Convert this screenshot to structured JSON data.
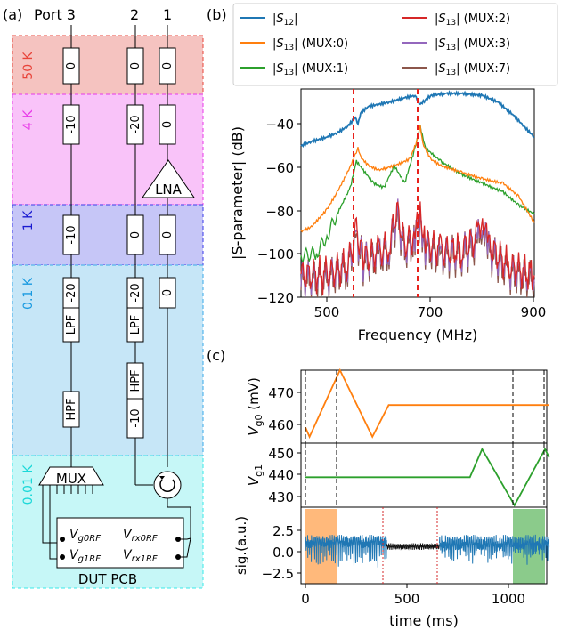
{
  "panel_a": {
    "label": "(a)",
    "port_labels": [
      "Port 3",
      "2",
      "1"
    ],
    "stages": [
      {
        "name": "50 K",
        "color": "#e8443a",
        "fill": "#f5c3c0",
        "text_color": "#e8443a"
      },
      {
        "name": "4 K",
        "color": "#e83ae8",
        "fill": "#f9c3f9",
        "text_color": "#e83ae8"
      },
      {
        "name": "1 K",
        "color": "#3a3ae8",
        "fill": "#c6c6f7",
        "text_color": "#1a1ad0"
      },
      {
        "name": "0.1 K",
        "color": "#3aaae8",
        "fill": "#c6e6f7",
        "text_color": "#1a9ae0"
      },
      {
        "name": "0.01 K",
        "color": "#3ae8e8",
        "fill": "#c6f7f7",
        "text_color": "#1ad8d8"
      }
    ],
    "attenuators": {
      "stage50": [
        "0",
        "0",
        "0"
      ],
      "stage4": [
        "-10",
        "-20",
        "0"
      ],
      "stage1": [
        "-10",
        "0",
        "0"
      ],
      "stage01": [
        "-20",
        "-20",
        "0"
      ],
      "extra": "-10"
    },
    "filters": {
      "lpf": "LPF",
      "hpf": "HPF"
    },
    "lna": "LNA",
    "mux": "MUX",
    "pcb": {
      "label": "DUT PCB",
      "g0": "V_g0RF",
      "rx0": "V_rx0RF",
      "g1": "V_g1RF",
      "rx1": "V_rx1RF"
    }
  },
  "panel_b": {
    "label": "(b)",
    "legend": [
      "|S12|",
      "|S13| (MUX:0)",
      "|S13| (MUX:1)",
      "|S13| (MUX:2)",
      "|S13| (MUX:3)",
      "|S13| (MUX:7)"
    ],
    "colors": [
      "#1f77b4",
      "#ff7f0e",
      "#2ca02c",
      "#d62728",
      "#9467bd",
      "#8c564b"
    ],
    "xlabel": "Frequency (MHz)",
    "ylabel": "|S-parameter| (dB)",
    "xticks": [
      "500",
      "700",
      "900"
    ],
    "yticks": [
      "−40",
      "−60",
      "−80",
      "−100",
      "−120"
    ]
  },
  "panel_c": {
    "label": "(c)",
    "ylabel_top_main": "V",
    "ylabel_top_sub": "g0",
    "ylabel_top_unit": " (mV)",
    "ylabel_mid_main": "V",
    "ylabel_mid_sub": "g1",
    "ylabel_bot": "sig.(a.u.)",
    "yticks_top": [
      "470",
      "460"
    ],
    "yticks_mid": [
      "450",
      "440",
      "430"
    ],
    "yticks_bot": [
      "2.5",
      "0.0",
      "−2.5"
    ],
    "xticks": [
      "0",
      "500",
      "1000"
    ],
    "xlabel": "time (ms)"
  },
  "chart_data": [
    {
      "type": "line",
      "title": "",
      "xlabel": "Frequency (MHz)",
      "ylabel": "|S-parameter| (dB)",
      "xlim": [
        450,
        900
      ],
      "ylim": [
        -120,
        -25
      ],
      "grid": false,
      "legend": "top",
      "markers_vertical": [
        557,
        680
      ],
      "series": [
        {
          "name": "|S12|",
          "x": [
            450,
            470,
            500,
            520,
            540,
            555,
            560,
            565,
            580,
            600,
            620,
            650,
            670,
            680,
            690,
            700,
            730,
            760,
            800,
            830,
            860,
            880,
            900
          ],
          "y": [
            -51,
            -49,
            -47,
            -45,
            -42,
            -38,
            -41,
            -36,
            -33,
            -32,
            -31,
            -29,
            -28,
            -32,
            -30,
            -28,
            -27,
            -27,
            -28,
            -31,
            -37,
            -42,
            -47
          ]
        },
        {
          "name": "|S13| (MUX:0)",
          "x": [
            450,
            470,
            500,
            520,
            540,
            555,
            560,
            565,
            580,
            600,
            630,
            660,
            675,
            680,
            685,
            700,
            720,
            760,
            800,
            840,
            870,
            900
          ],
          "y": [
            -90,
            -88,
            -80,
            -72,
            -63,
            -55,
            -52,
            -56,
            -60,
            -62,
            -60,
            -57,
            -48,
            -42,
            -50,
            -57,
            -60,
            -63,
            -66,
            -68,
            -74,
            -86
          ]
        },
        {
          "name": "|S13| (MUX:1)",
          "x": [
            450,
            480,
            500,
            520,
            545,
            557,
            570,
            590,
            610,
            630,
            650,
            670,
            680,
            690,
            720,
            760,
            800,
            840,
            870,
            900
          ],
          "y": [
            -101,
            -100,
            -92,
            -82,
            -70,
            -58,
            -62,
            -68,
            -70,
            -60,
            -68,
            -52,
            -42,
            -52,
            -58,
            -64,
            -68,
            -72,
            -78,
            -82
          ]
        },
        {
          "name": "|S13| (MUX:2)",
          "x": [
            450,
            500,
            540,
            557,
            570,
            600,
            620,
            635,
            650,
            670,
            680,
            690,
            720,
            760,
            790,
            800,
            810,
            850,
            900
          ],
          "y": [
            -110,
            -110,
            -105,
            -90,
            -102,
            -100,
            -96,
            -80,
            -96,
            -92,
            -81,
            -95,
            -99,
            -98,
            -93,
            -82,
            -96,
            -106,
            -110
          ]
        },
        {
          "name": "|S13| (MUX:3)",
          "x": [
            450,
            500,
            540,
            557,
            570,
            600,
            620,
            635,
            650,
            670,
            680,
            690,
            720,
            760,
            790,
            800,
            810,
            850,
            900
          ],
          "y": [
            -112,
            -111,
            -106,
            -92,
            -104,
            -101,
            -98,
            -82,
            -98,
            -94,
            -83,
            -97,
            -101,
            -100,
            -95,
            -84,
            -98,
            -108,
            -112
          ]
        },
        {
          "name": "|S13| (MUX:7)",
          "x": [
            450,
            500,
            540,
            557,
            570,
            600,
            620,
            635,
            650,
            670,
            680,
            690,
            720,
            760,
            790,
            800,
            810,
            850,
            900
          ],
          "y": [
            -113,
            -112,
            -107,
            -93,
            -105,
            -102,
            -99,
            -84,
            -99,
            -95,
            -84,
            -98,
            -102,
            -101,
            -96,
            -85,
            -99,
            -109,
            -113
          ]
        }
      ]
    },
    {
      "type": "line",
      "title": "",
      "xlabel": "time (ms)",
      "ylabel": "V_g0 (mV)",
      "xlim": [
        0,
        1200
      ],
      "ylim": [
        455,
        478
      ],
      "series": [
        {
          "name": "",
          "x": [
            0,
            20,
            170,
            330,
            410,
            1200
          ],
          "y": [
            460,
            457,
            478,
            457,
            467,
            467
          ]
        }
      ]
    },
    {
      "type": "line",
      "title": "",
      "xlabel": "time (ms)",
      "ylabel": "V_g1",
      "xlim": [
        0,
        1200
      ],
      "ylim": [
        425,
        457
      ],
      "series": [
        {
          "name": "",
          "x": [
            0,
            810,
            870,
            1030,
            1180,
            1200
          ],
          "y": [
            440,
            440,
            454,
            426,
            454,
            450
          ]
        }
      ]
    },
    {
      "type": "line",
      "title": "",
      "xlabel": "time (ms)",
      "ylabel": "sig.(a.u.)",
      "xlim": [
        0,
        1200
      ],
      "ylim": [
        -3,
        4
      ],
      "shaded_regions": [
        {
          "from": 10,
          "to": 170,
          "color": "#ff7f0e"
        },
        {
          "from": 1030,
          "to": 1190,
          "color": "#2ca02c"
        }
      ],
      "series": [
        {
          "name": "",
          "x": [
            0,
            400
          ],
          "y": [
            1.2,
            1.2
          ]
        },
        {
          "name": "",
          "x": [
            400,
            660
          ],
          "y": [
            0.6,
            0.6
          ]
        },
        {
          "name": "",
          "x": [
            660,
            1200
          ],
          "y": [
            0.8,
            1.3
          ]
        }
      ]
    }
  ]
}
